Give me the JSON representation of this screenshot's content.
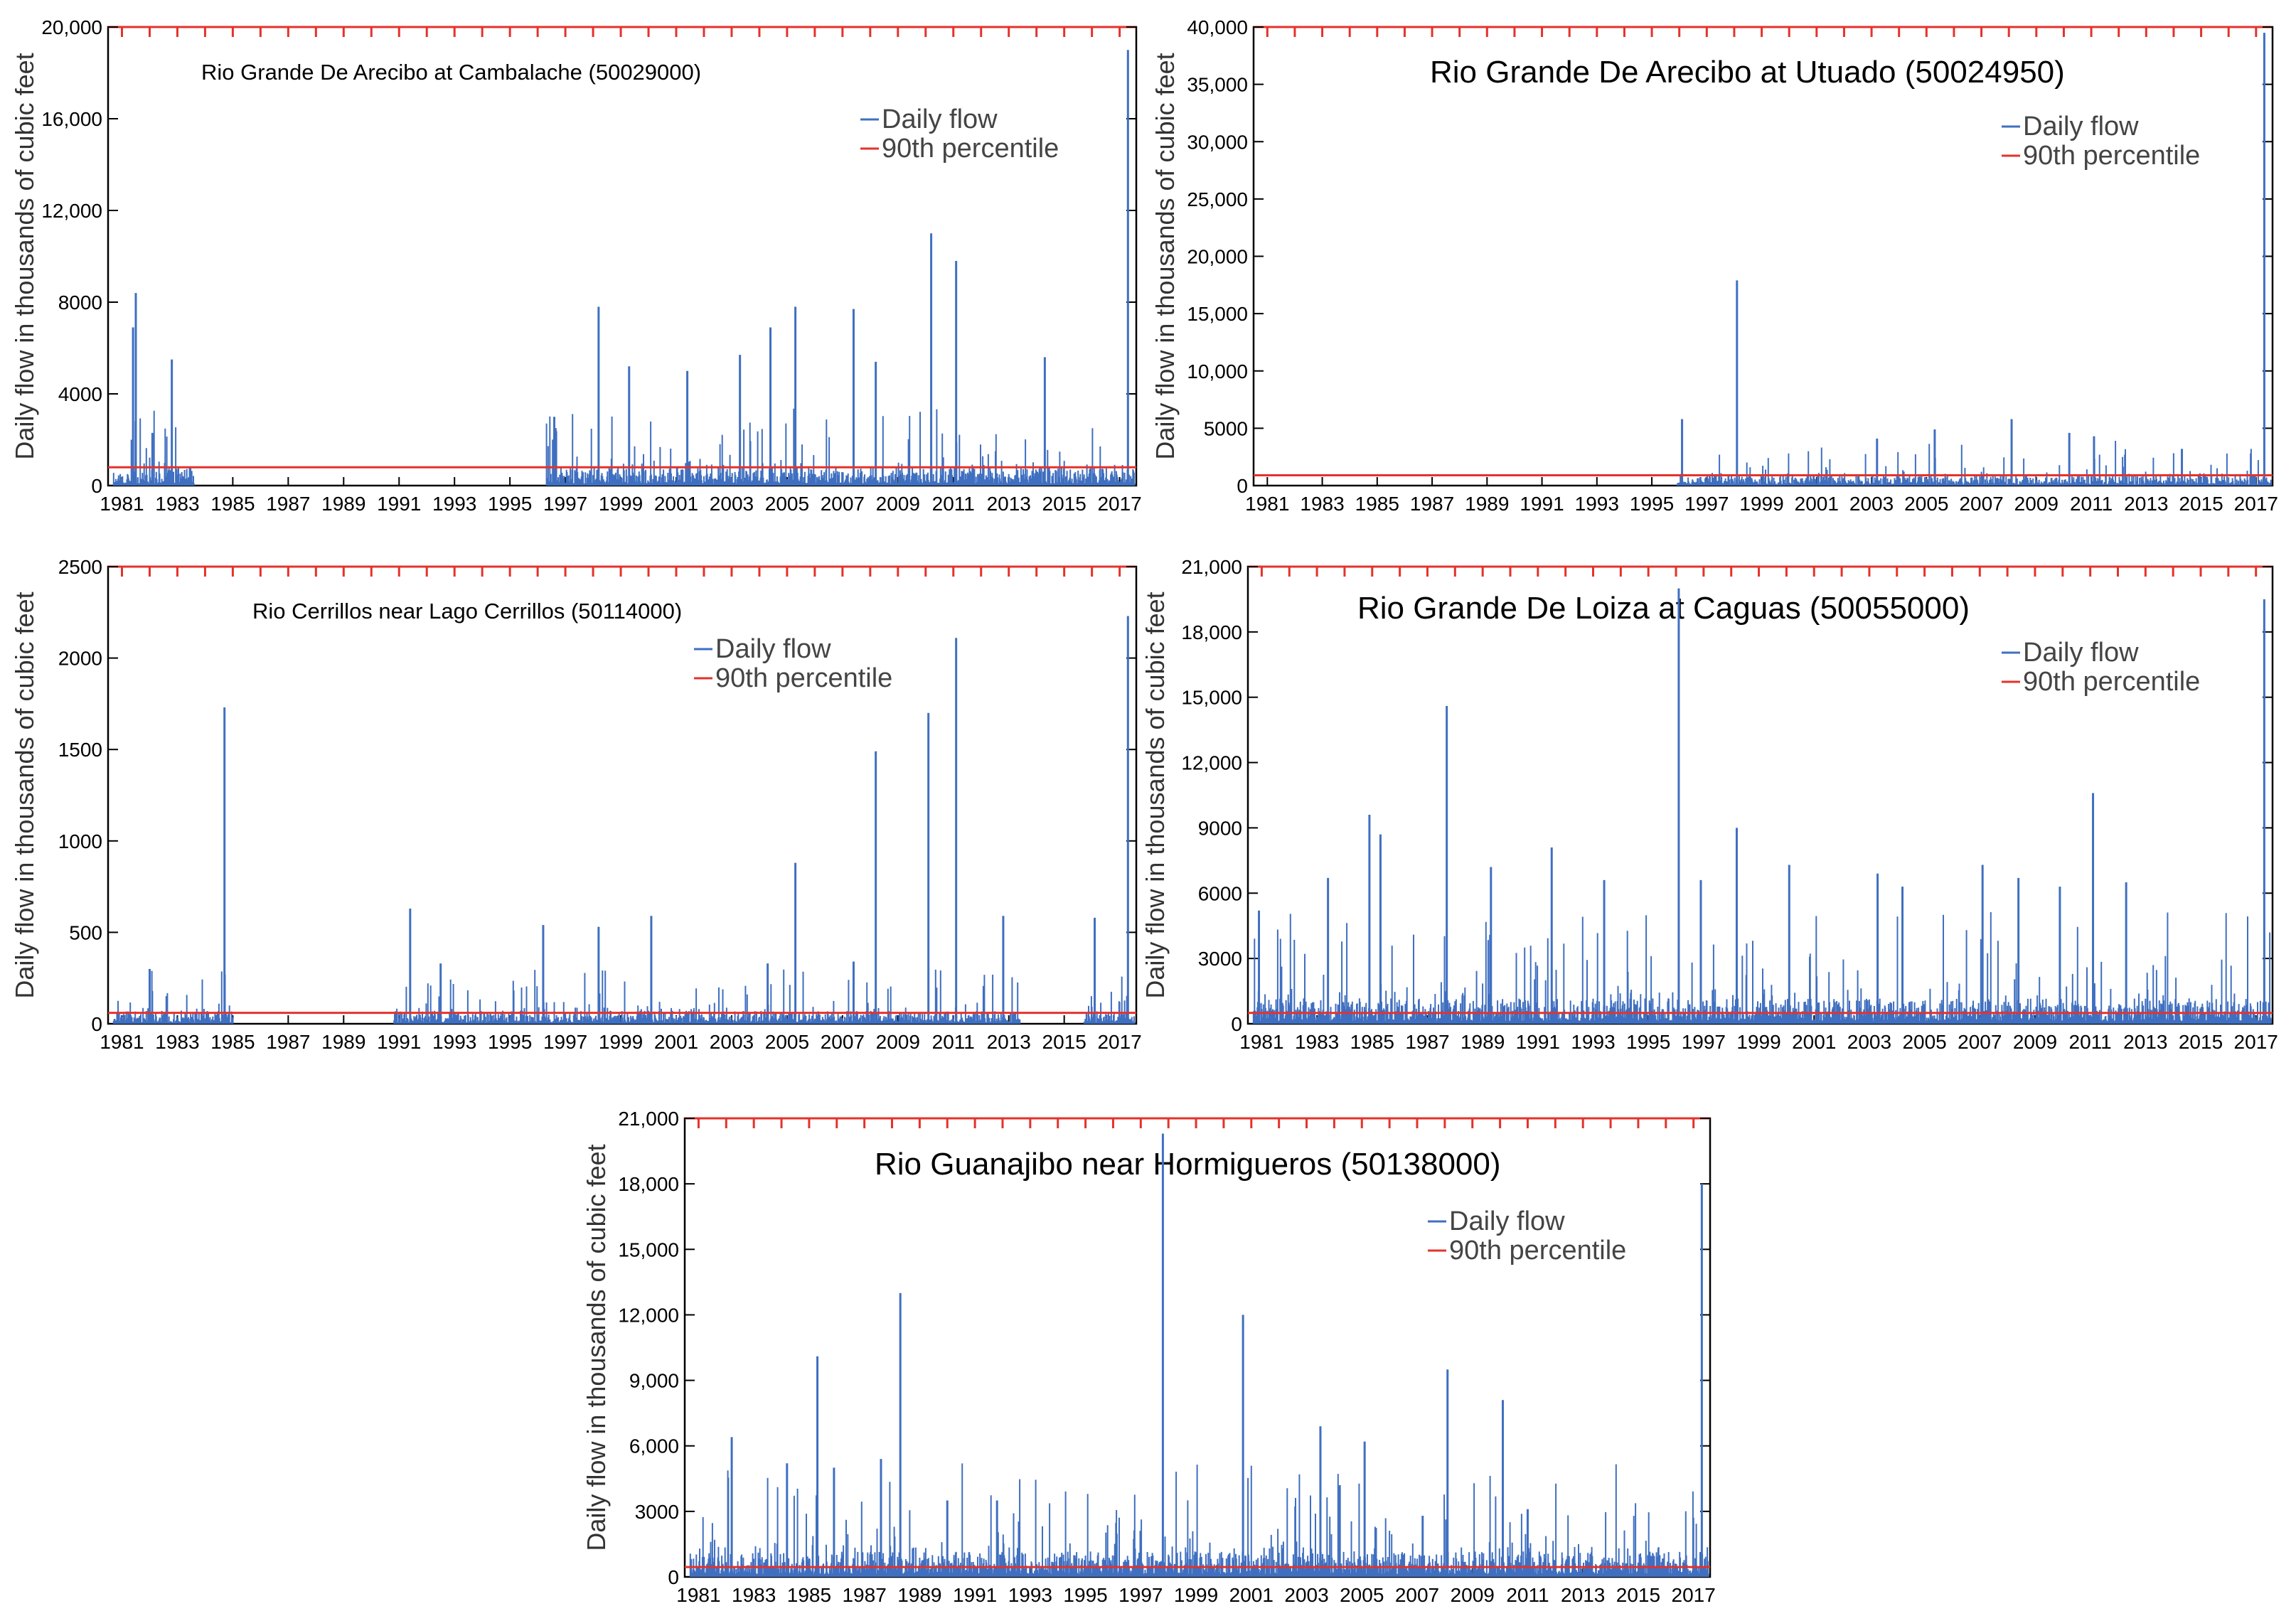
{
  "chart_data": [
    {
      "type": "line",
      "title": "Rio Grande De Arecibo at Cambalache (50029000)",
      "xlabel": "",
      "ylabel": "Daily flow in thousands of cubic feet",
      "xlim": [
        1980.5,
        2017.6
      ],
      "ylim": [
        0,
        20000
      ],
      "xticks": [
        "1981",
        "1983",
        "1985",
        "1987",
        "1989",
        "1991",
        "1993",
        "1995",
        "1997",
        "1999",
        "2001",
        "2003",
        "2005",
        "2007",
        "2009",
        "2011",
        "2013",
        "2015",
        "2017"
      ],
      "yticks": [
        "0",
        "4000",
        "8000",
        "12,000",
        "16,000",
        "20,000"
      ],
      "legend": [
        "Daily flow",
        "90th percentile"
      ],
      "legend_position": "top-right",
      "threshold": 800,
      "baseline": 450,
      "record_gaps": [
        [
          1983.6,
          1996.3
        ]
      ],
      "peaks": [
        [
          1981.4,
          6900
        ],
        [
          1981.5,
          8400
        ],
        [
          1982.1,
          2300
        ],
        [
          1982.8,
          5500
        ],
        [
          1996.6,
          3000
        ],
        [
          1998.2,
          7800
        ],
        [
          1999.3,
          5200
        ],
        [
          2001.4,
          5000
        ],
        [
          2003.3,
          5700
        ],
        [
          2004.4,
          6900
        ],
        [
          2005.3,
          7800
        ],
        [
          2007.4,
          7700
        ],
        [
          2008.2,
          5400
        ],
        [
          2010.2,
          11000
        ],
        [
          2011.1,
          9800
        ],
        [
          2014.3,
          5600
        ],
        [
          2017.3,
          19000
        ]
      ]
    },
    {
      "type": "line",
      "title": "Rio Grande De Arecibo at Utuado (50024950)",
      "xlabel": "",
      "ylabel": "Daily flow in thousands of cubic feet",
      "xlim": [
        1980.5,
        2017.6
      ],
      "ylim": [
        0,
        40000
      ],
      "xticks": [
        "1981",
        "1983",
        "1985",
        "1987",
        "1989",
        "1991",
        "1993",
        "1995",
        "1997",
        "1999",
        "2001",
        "2003",
        "2005",
        "2007",
        "2009",
        "2011",
        "2013",
        "2015",
        "2017"
      ],
      "yticks": [
        "0",
        "5000",
        "10,000",
        "15,000",
        "20,000",
        "25,000",
        "30,000",
        "35,000",
        "40,000"
      ],
      "legend": [
        "Daily flow",
        "90th percentile"
      ],
      "legend_position": "top-right",
      "threshold": 900,
      "baseline": 500,
      "record_gaps": [
        [
          1980.5,
          1995.9
        ]
      ],
      "peaks": [
        [
          1996.1,
          5800
        ],
        [
          1998.1,
          17900
        ],
        [
          2003.2,
          4100
        ],
        [
          2005.3,
          4900
        ],
        [
          2008.1,
          5800
        ],
        [
          2010.2,
          4600
        ],
        [
          2011.1,
          4300
        ],
        [
          2014.3,
          3200
        ],
        [
          2017.3,
          39500
        ]
      ]
    },
    {
      "type": "line",
      "title": "Rio Cerrillos near Lago Cerrillos (50114000)",
      "xlabel": "",
      "ylabel": "Daily flow in thousands of cubic feet",
      "xlim": [
        1980.5,
        2017.6
      ],
      "ylim": [
        0,
        2500
      ],
      "xticks": [
        "1981",
        "1983",
        "1985",
        "1987",
        "1989",
        "1991",
        "1993",
        "1995",
        "1997",
        "1999",
        "2001",
        "2003",
        "2005",
        "2007",
        "2009",
        "2011",
        "2013",
        "2015",
        "2017"
      ],
      "yticks": [
        "0",
        "500",
        "1000",
        "1500",
        "2000",
        "2500"
      ],
      "legend": [
        "Daily flow",
        "90th percentile"
      ],
      "legend_position": "top-right",
      "threshold": 60,
      "baseline": 40,
      "record_gaps": [
        [
          1985.0,
          1990.8
        ],
        [
          2013.4,
          2015.7
        ]
      ],
      "peaks": [
        [
          1982.0,
          300
        ],
        [
          1984.7,
          1730
        ],
        [
          1991.4,
          630
        ],
        [
          1992.5,
          330
        ],
        [
          1996.2,
          540
        ],
        [
          1998.2,
          530
        ],
        [
          2000.1,
          590
        ],
        [
          2004.3,
          330
        ],
        [
          2005.3,
          880
        ],
        [
          2007.4,
          340
        ],
        [
          2008.2,
          1490
        ],
        [
          2010.1,
          1700
        ],
        [
          2011.1,
          2110
        ],
        [
          2012.8,
          590
        ],
        [
          2016.1,
          580
        ],
        [
          2017.3,
          2230
        ]
      ]
    },
    {
      "type": "line",
      "title": "Rio Grande De Loiza at Caguas (50055000)",
      "xlabel": "",
      "ylabel": "Daily flow in thousands of cubic feet",
      "xlim": [
        1980.5,
        2017.6
      ],
      "ylim": [
        0,
        21000
      ],
      "xticks": [
        "1981",
        "1983",
        "1985",
        "1987",
        "1989",
        "1991",
        "1993",
        "1995",
        "1997",
        "1999",
        "2001",
        "2003",
        "2005",
        "2007",
        "2009",
        "2011",
        "2013",
        "2015",
        "2017"
      ],
      "yticks": [
        "0",
        "3000",
        "6000",
        "9000",
        "12,000",
        "15,000",
        "18,000",
        "21,000"
      ],
      "legend": [
        "Daily flow",
        "90th percentile"
      ],
      "legend_position": "top-right",
      "threshold": 500,
      "baseline": 650,
      "record_gaps": [],
      "peaks": [
        [
          1980.9,
          5200
        ],
        [
          1983.4,
          6700
        ],
        [
          1984.9,
          9600
        ],
        [
          1985.3,
          8700
        ],
        [
          1987.7,
          14600
        ],
        [
          1989.3,
          7200
        ],
        [
          1991.5,
          8100
        ],
        [
          1993.4,
          6600
        ],
        [
          1996.1,
          20000
        ],
        [
          1996.9,
          6600
        ],
        [
          1998.2,
          9000
        ],
        [
          2000.1,
          7300
        ],
        [
          2003.3,
          6900
        ],
        [
          2004.2,
          6300
        ],
        [
          2007.1,
          7300
        ],
        [
          2008.4,
          6700
        ],
        [
          2009.9,
          6300
        ],
        [
          2011.1,
          10600
        ],
        [
          2012.3,
          6500
        ],
        [
          2017.3,
          19500
        ]
      ]
    },
    {
      "type": "line",
      "title": "Rio Guanajibo near Hormigueros (50138000)",
      "xlabel": "",
      "ylabel": "Daily flow in thousands of cubic feet",
      "xlim": [
        1980.5,
        2017.6
      ],
      "ylim": [
        0,
        21000
      ],
      "xticks": [
        "1981",
        "1983",
        "1985",
        "1987",
        "1989",
        "1991",
        "1993",
        "1995",
        "1997",
        "1999",
        "2001",
        "2003",
        "2005",
        "2007",
        "2009",
        "2011",
        "2013",
        "2015",
        "2017"
      ],
      "yticks": [
        "0",
        "3000",
        "6,000",
        "9,000",
        "12,000",
        "15,000",
        "18,000",
        "21,000"
      ],
      "legend": [
        "Daily flow",
        "90th percentile"
      ],
      "legend_position": "top-right",
      "threshold": 450,
      "baseline": 650,
      "record_gaps": [],
      "peaks": [
        [
          1982.2,
          6400
        ],
        [
          1984.2,
          5200
        ],
        [
          1985.3,
          10100
        ],
        [
          1985.9,
          5000
        ],
        [
          1987.6,
          5400
        ],
        [
          1988.3,
          13000
        ],
        [
          1990.0,
          3500
        ],
        [
          1991.8,
          3500
        ],
        [
          1997.8,
          20300
        ],
        [
          2000.7,
          12000
        ],
        [
          2003.5,
          6900
        ],
        [
          2004.2,
          4200
        ],
        [
          2005.1,
          6200
        ],
        [
          2007.2,
          2800
        ],
        [
          2008.1,
          9500
        ],
        [
          2010.1,
          8100
        ],
        [
          2011.0,
          3100
        ],
        [
          2017.3,
          18000
        ]
      ]
    }
  ]
}
